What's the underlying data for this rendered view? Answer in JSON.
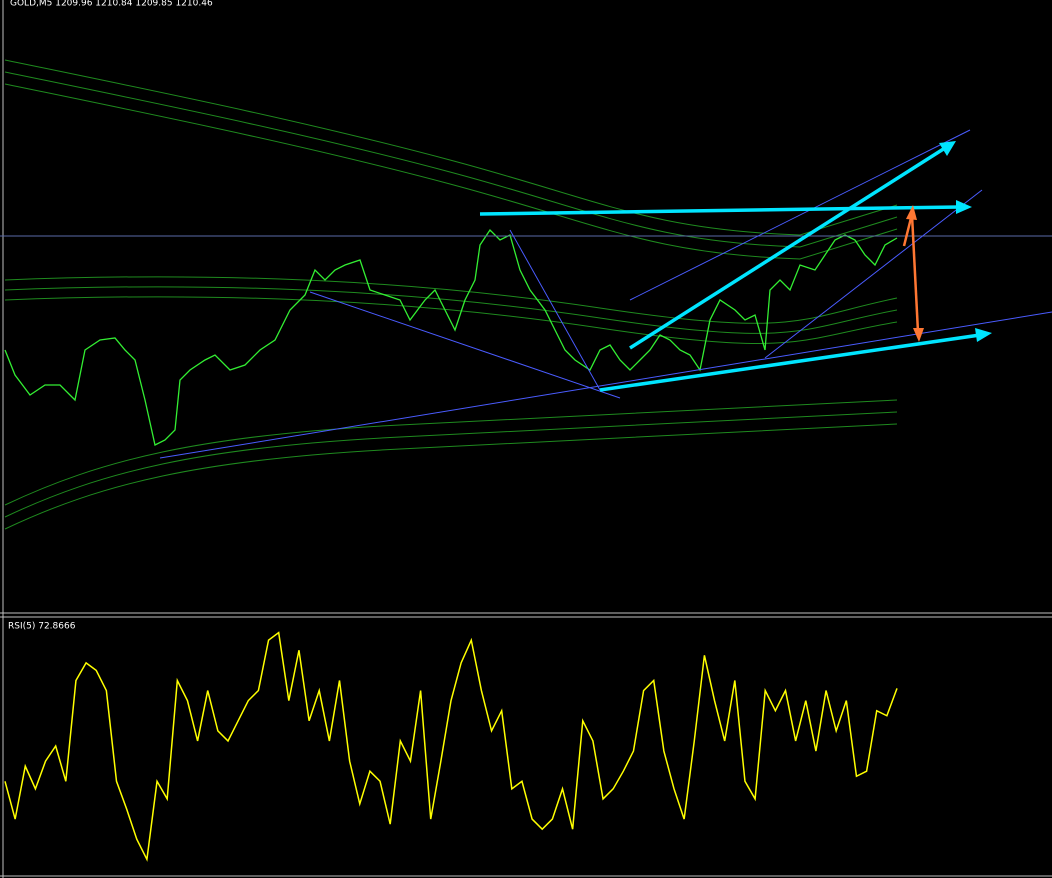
{
  "header": {
    "symbol_quote": "GOLD,M5  1209.96 1210.84 1209.85 1210.46"
  },
  "chart_data": {
    "type": "line",
    "title": "RSI(5) 72.8666",
    "color": "#ffff00",
    "ylim": [
      0,
      100
    ],
    "values": [
      36,
      21,
      42,
      33,
      44,
      50,
      36,
      76,
      83,
      80,
      72,
      36,
      25,
      13,
      5,
      36,
      29,
      76,
      68,
      52,
      72,
      56,
      52,
      60,
      68,
      72,
      92,
      95,
      68,
      88,
      60,
      72,
      52,
      76,
      44,
      27,
      40,
      36,
      19,
      52,
      44,
      72,
      21,
      44,
      68,
      83,
      92,
      72,
      56,
      64,
      33,
      36,
      21,
      17,
      21,
      33,
      17,
      60,
      52,
      29,
      33,
      40,
      48,
      72,
      76,
      48,
      33,
      21,
      52,
      86,
      68,
      52,
      76,
      36,
      29,
      72,
      64,
      72,
      52,
      68,
      48,
      72,
      56,
      68,
      38,
      40,
      64,
      62,
      72.8666
    ]
  }
}
